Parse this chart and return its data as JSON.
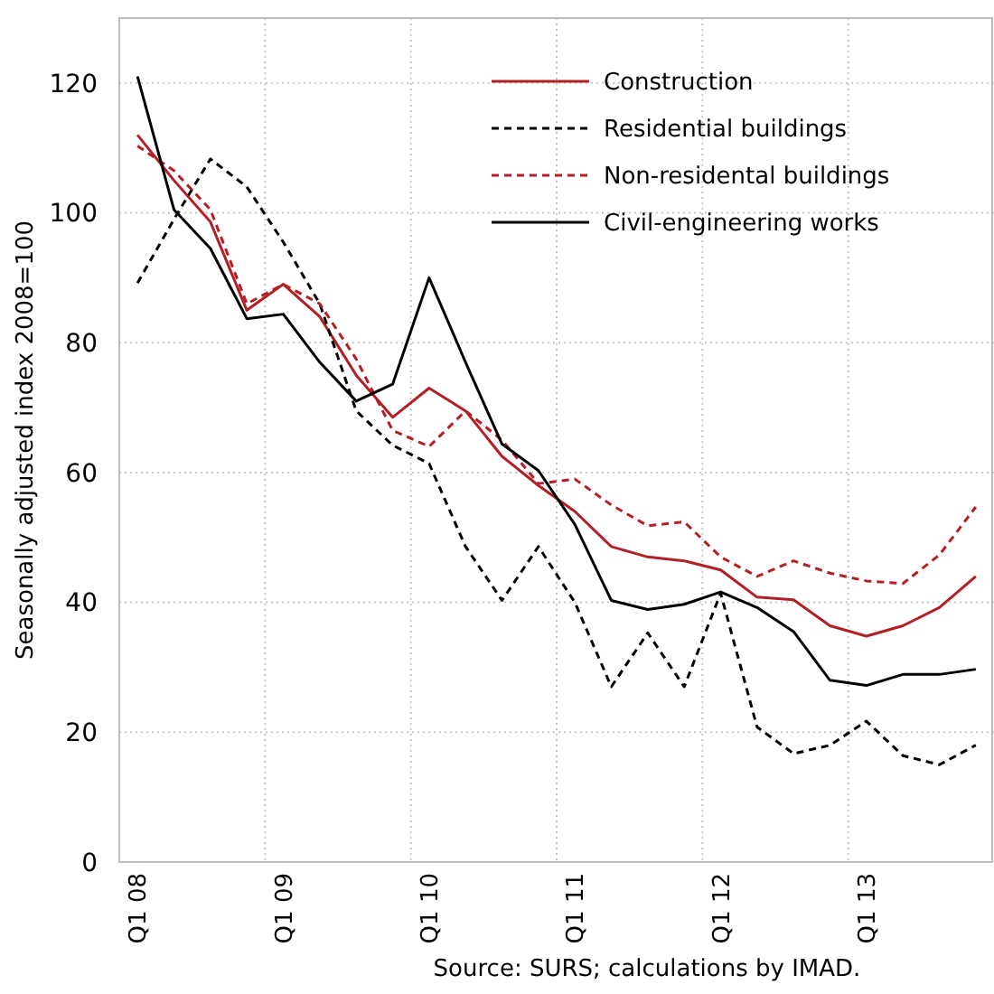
{
  "chart_data": {
    "type": "line",
    "ylabel": "Seasonally adjusted index 2008=100",
    "annotations": [
      "Source: SURS; calculations by IMAD."
    ],
    "categories": [
      "Q1 08",
      null,
      null,
      null,
      "Q1 09",
      null,
      null,
      null,
      "Q1 10",
      null,
      null,
      null,
      "Q1 11",
      null,
      null,
      null,
      "Q1 12",
      null,
      null,
      null,
      "Q1 13",
      null,
      null,
      null
    ],
    "series": [
      {
        "name": "Construction",
        "color": "#b22025",
        "line_style": "solid",
        "values": [
          112,
          105,
          98.6,
          85,
          89,
          84,
          75,
          68.5,
          73,
          69.5,
          62.5,
          58,
          54,
          48.6,
          47,
          46.4,
          45,
          40.8,
          40.4,
          36.4,
          34.8,
          36.4,
          39.2,
          44
        ]
      },
      {
        "name": "Residential buildings",
        "color": "#000000",
        "line_style": "dashed",
        "values": [
          89.2,
          99,
          108.3,
          104,
          95.5,
          86,
          69.5,
          64.2,
          61.4,
          48.6,
          40.3,
          48.6,
          40,
          27,
          35.3,
          27,
          41.4,
          20.8,
          16.7,
          18,
          21.7,
          16.4,
          15,
          18
        ]
      },
      {
        "name": "Non-residental buildings",
        "color": "#b22025",
        "line_style": "dashed",
        "values": [
          110.3,
          106.5,
          100.5,
          86,
          89,
          86,
          77.5,
          66.5,
          64,
          69.5,
          65,
          58.3,
          59,
          55,
          51.8,
          52.4,
          47,
          44,
          46.4,
          44.5,
          43.3,
          42.9,
          47.3,
          54.7
        ]
      },
      {
        "name": "Civil-engineering works",
        "color": "#000000",
        "line_style": "solid",
        "values": [
          121,
          100.5,
          94.5,
          83.7,
          84.4,
          77,
          71,
          73.6,
          90,
          77,
          64.4,
          60.3,
          52,
          40.3,
          38.9,
          39.7,
          41.6,
          39.2,
          35.5,
          28,
          27.2,
          28.9,
          28.9,
          29.7
        ]
      }
    ],
    "ylim": [
      0,
      130
    ],
    "yticks": [
      0,
      20,
      40,
      60,
      80,
      100,
      120
    ],
    "grid": true,
    "legend": "top right"
  }
}
